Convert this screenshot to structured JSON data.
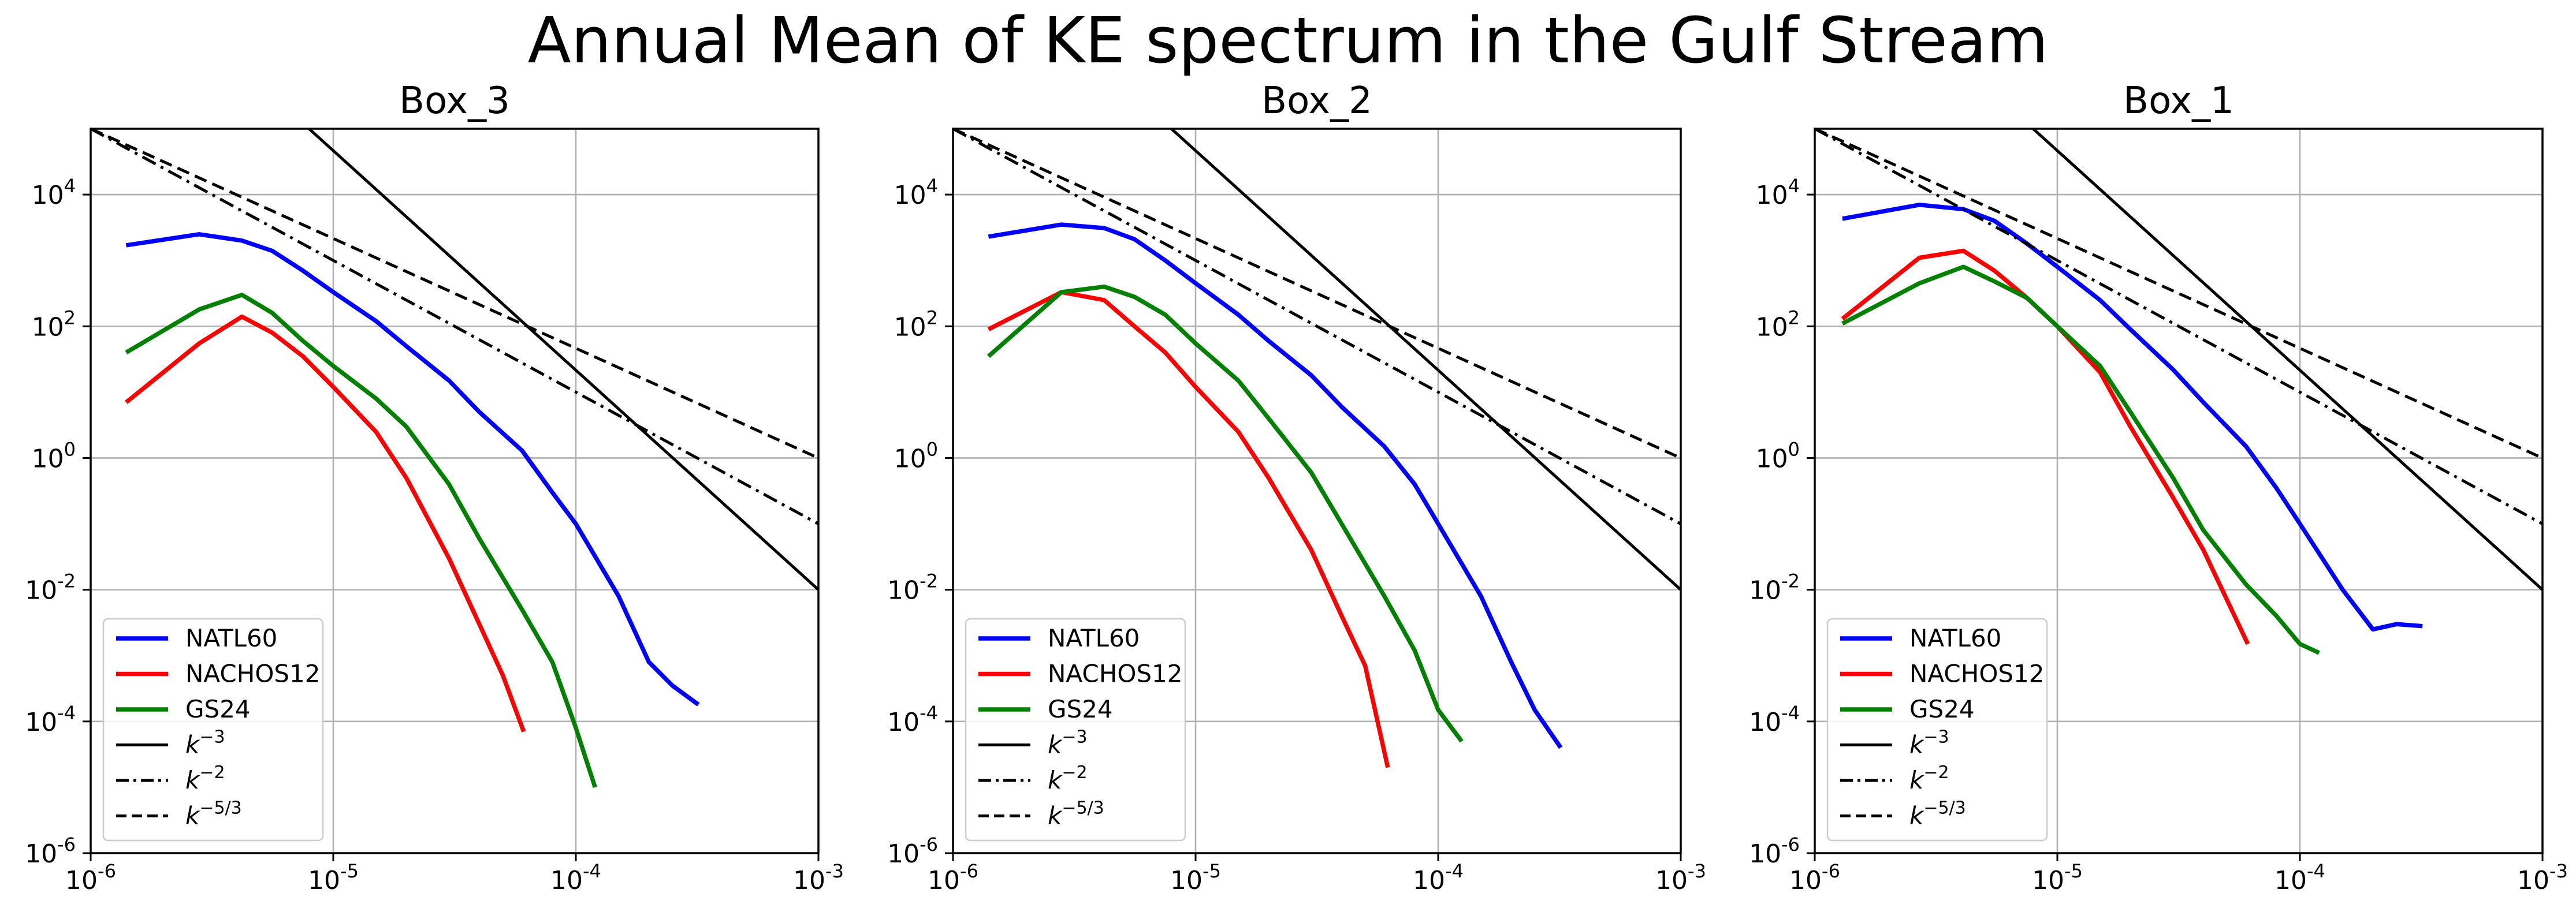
{
  "figure": {
    "title": "Annual Mean of KE spectrum in the Gulf Stream"
  },
  "chart_data": [
    {
      "type": "line",
      "title": "Box_3",
      "xlabel": "",
      "ylabel": "",
      "xscale": "log",
      "yscale": "log",
      "xlim": [
        1e-06,
        0.001
      ],
      "ylim": [
        1e-06,
        100000.0
      ],
      "grid": true,
      "legend_position": "lower-left",
      "xticks": [
        "10^-6",
        "10^-5",
        "10^-4",
        "10^-3"
      ],
      "yticks": [
        "10^-6",
        "10^-4",
        "10^-2",
        "10^0",
        "10^2",
        "10^4"
      ],
      "series": [
        {
          "name": "NATL60",
          "color": "#0000ff",
          "style": "solid",
          "points": [
            [
              1.4e-06,
              1700
            ],
            [
              2.8e-06,
              2500
            ],
            [
              4.2e-06,
              2000
            ],
            [
              5.6e-06,
              1400
            ],
            [
              7.5e-06,
              700
            ],
            [
              1e-05,
              330
            ],
            [
              1.5e-05,
              120
            ],
            [
              2e-05,
              50
            ],
            [
              3e-05,
              15
            ],
            [
              4e-05,
              5
            ],
            [
              6e-05,
              1.3
            ],
            [
              8e-05,
              0.3
            ],
            [
              0.0001,
              0.1
            ],
            [
              0.00015,
              0.008
            ],
            [
              0.0002,
              0.0008
            ],
            [
              0.00025,
              0.00035
            ],
            [
              0.00032,
              0.00018
            ]
          ]
        },
        {
          "name": "NACHOS12",
          "color": "#ff0000",
          "style": "solid",
          "points": [
            [
              1.4e-06,
              7
            ],
            [
              2.8e-06,
              55
            ],
            [
              4.2e-06,
              140
            ],
            [
              5.6e-06,
              80
            ],
            [
              7.5e-06,
              35
            ],
            [
              1e-05,
              12
            ],
            [
              1.5e-05,
              2.5
            ],
            [
              2e-05,
              0.5
            ],
            [
              3e-05,
              0.03
            ],
            [
              4e-05,
              0.003
            ],
            [
              5e-05,
              0.0005
            ],
            [
              6.1e-05,
              7e-05
            ]
          ]
        },
        {
          "name": "GS24",
          "color": "#008000",
          "style": "solid",
          "points": [
            [
              1.4e-06,
              40
            ],
            [
              2.8e-06,
              180
            ],
            [
              4.2e-06,
              300
            ],
            [
              5.6e-06,
              160
            ],
            [
              7.5e-06,
              60
            ],
            [
              1e-05,
              25
            ],
            [
              1.5e-05,
              8
            ],
            [
              2e-05,
              3
            ],
            [
              3e-05,
              0.4
            ],
            [
              4e-05,
              0.06
            ],
            [
              6e-05,
              0.005
            ],
            [
              8e-05,
              0.0008
            ],
            [
              0.0001,
              8e-05
            ],
            [
              0.00012,
              1e-05
            ]
          ]
        },
        {
          "name": "k^-3",
          "color": "#000000",
          "style": "solid",
          "points": [
            [
              1e-06,
              100000000.0
            ],
            [
              0.001,
              0.01
            ]
          ]
        },
        {
          "name": "k^-2",
          "color": "#000000",
          "style": "dashdot",
          "points": [
            [
              1e-06,
              100000.0
            ],
            [
              0.001,
              0.1
            ]
          ]
        },
        {
          "name": "k^-5/3",
          "color": "#000000",
          "style": "dashed",
          "points": [
            [
              1e-06,
              100000.0
            ],
            [
              0.001,
              1
            ]
          ]
        }
      ]
    },
    {
      "type": "line",
      "title": "Box_2",
      "xlabel": "",
      "ylabel": "",
      "xscale": "log",
      "yscale": "log",
      "xlim": [
        1e-06,
        0.001
      ],
      "ylim": [
        1e-06,
        100000.0
      ],
      "grid": true,
      "legend_position": "lower-left",
      "xticks": [
        "10^-6",
        "10^-5",
        "10^-4",
        "10^-3"
      ],
      "yticks": [
        "10^-6",
        "10^-4",
        "10^-2",
        "10^0",
        "10^2",
        "10^4"
      ],
      "series": [
        {
          "name": "NATL60",
          "color": "#0000ff",
          "style": "solid",
          "points": [
            [
              1.4e-06,
              2300
            ],
            [
              2.8e-06,
              3500
            ],
            [
              4.2e-06,
              3100
            ],
            [
              5.6e-06,
              2100
            ],
            [
              7.5e-06,
              1000
            ],
            [
              1e-05,
              450
            ],
            [
              1.5e-05,
              150
            ],
            [
              2e-05,
              60
            ],
            [
              3e-05,
              18
            ],
            [
              4e-05,
              6
            ],
            [
              6e-05,
              1.5
            ],
            [
              8e-05,
              0.4
            ],
            [
              0.0001,
              0.1
            ],
            [
              0.00015,
              0.008
            ],
            [
              0.0002,
              0.0008
            ],
            [
              0.00025,
              0.00015
            ],
            [
              0.00032,
              4e-05
            ]
          ]
        },
        {
          "name": "NACHOS12",
          "color": "#ff0000",
          "style": "solid",
          "points": [
            [
              1.4e-06,
              90
            ],
            [
              2.8e-06,
              330
            ],
            [
              4.2e-06,
              250
            ],
            [
              5.6e-06,
              100
            ],
            [
              7.5e-06,
              40
            ],
            [
              1e-05,
              12
            ],
            [
              1.5e-05,
              2.5
            ],
            [
              2e-05,
              0.5
            ],
            [
              3e-05,
              0.04
            ],
            [
              4e-05,
              0.004
            ],
            [
              5e-05,
              0.0007
            ],
            [
              6.2e-05,
              2e-05
            ]
          ]
        },
        {
          "name": "GS24",
          "color": "#008000",
          "style": "solid",
          "points": [
            [
              1.4e-06,
              35
            ],
            [
              2.8e-06,
              330
            ],
            [
              4.2e-06,
              400
            ],
            [
              5.6e-06,
              280
            ],
            [
              7.5e-06,
              150
            ],
            [
              1e-05,
              55
            ],
            [
              1.5e-05,
              15
            ],
            [
              2e-05,
              4
            ],
            [
              3e-05,
              0.6
            ],
            [
              4e-05,
              0.1
            ],
            [
              6e-05,
              0.008
            ],
            [
              8e-05,
              0.0012
            ],
            [
              0.0001,
              0.00015
            ],
            [
              0.000125,
              5e-05
            ]
          ]
        },
        {
          "name": "k^-3",
          "color": "#000000",
          "style": "solid",
          "points": [
            [
              1e-06,
              100000000.0
            ],
            [
              0.001,
              0.01
            ]
          ]
        },
        {
          "name": "k^-2",
          "color": "#000000",
          "style": "dashdot",
          "points": [
            [
              1e-06,
              100000.0
            ],
            [
              0.001,
              0.1
            ]
          ]
        },
        {
          "name": "k^-5/3",
          "color": "#000000",
          "style": "dashed",
          "points": [
            [
              1e-06,
              100000.0
            ],
            [
              0.001,
              1
            ]
          ]
        }
      ]
    },
    {
      "type": "line",
      "title": "Box_1",
      "xlabel": "",
      "ylabel": "",
      "xscale": "log",
      "yscale": "log",
      "xlim": [
        1e-06,
        0.001
      ],
      "ylim": [
        1e-06,
        100000.0
      ],
      "grid": true,
      "legend_position": "lower-left",
      "xticks": [
        "10^-6",
        "10^-5",
        "10^-4",
        "10^-3"
      ],
      "yticks": [
        "10^-6",
        "10^-4",
        "10^-2",
        "10^0",
        "10^2",
        "10^4"
      ],
      "series": [
        {
          "name": "NATL60",
          "color": "#0000ff",
          "style": "solid",
          "points": [
            [
              1.3e-06,
              4300
            ],
            [
              2.7e-06,
              7000
            ],
            [
              4.1e-06,
              6000
            ],
            [
              5.5e-06,
              4000
            ],
            [
              7.5e-06,
              1800
            ],
            [
              1e-05,
              800
            ],
            [
              1.5e-05,
              250
            ],
            [
              2e-05,
              90
            ],
            [
              3e-05,
              22
            ],
            [
              4e-05,
              7
            ],
            [
              6e-05,
              1.5
            ],
            [
              8e-05,
              0.35
            ],
            [
              0.0001,
              0.1
            ],
            [
              0.00015,
              0.01
            ],
            [
              0.0002,
              0.0025
            ],
            [
              0.00025,
              0.003
            ],
            [
              0.00032,
              0.0028
            ]
          ]
        },
        {
          "name": "NACHOS12",
          "color": "#ff0000",
          "style": "solid",
          "points": [
            [
              1.3e-06,
              130
            ],
            [
              2.7e-06,
              1100
            ],
            [
              4.1e-06,
              1400
            ],
            [
              5.5e-06,
              700
            ],
            [
              7.5e-06,
              270
            ],
            [
              1e-05,
              100
            ],
            [
              1.5e-05,
              20
            ],
            [
              2e-05,
              3
            ],
            [
              3e-05,
              0.25
            ],
            [
              4e-05,
              0.04
            ],
            [
              6.1e-05,
              0.0015
            ]
          ]
        },
        {
          "name": "GS24",
          "color": "#008000",
          "style": "solid",
          "points": [
            [
              1.3e-06,
              110
            ],
            [
              2.7e-06,
              450
            ],
            [
              4.1e-06,
              800
            ],
            [
              5.5e-06,
              480
            ],
            [
              7.5e-06,
              270
            ],
            [
              1e-05,
              100
            ],
            [
              1.5e-05,
              25
            ],
            [
              2e-05,
              5
            ],
            [
              3e-05,
              0.5
            ],
            [
              4e-05,
              0.08
            ],
            [
              6e-05,
              0.012
            ],
            [
              8e-05,
              0.004
            ],
            [
              0.0001,
              0.0015
            ],
            [
              0.00012,
              0.0011
            ]
          ]
        },
        {
          "name": "k^-3",
          "color": "#000000",
          "style": "solid",
          "points": [
            [
              1e-06,
              100000000.0
            ],
            [
              0.001,
              0.01
            ]
          ]
        },
        {
          "name": "k^-2",
          "color": "#000000",
          "style": "dashdot",
          "points": [
            [
              1e-06,
              100000.0
            ],
            [
              0.001,
              0.1
            ]
          ]
        },
        {
          "name": "k^-5/3",
          "color": "#000000",
          "style": "dashed",
          "points": [
            [
              1e-06,
              100000.0
            ],
            [
              0.001,
              1
            ]
          ]
        }
      ]
    }
  ]
}
